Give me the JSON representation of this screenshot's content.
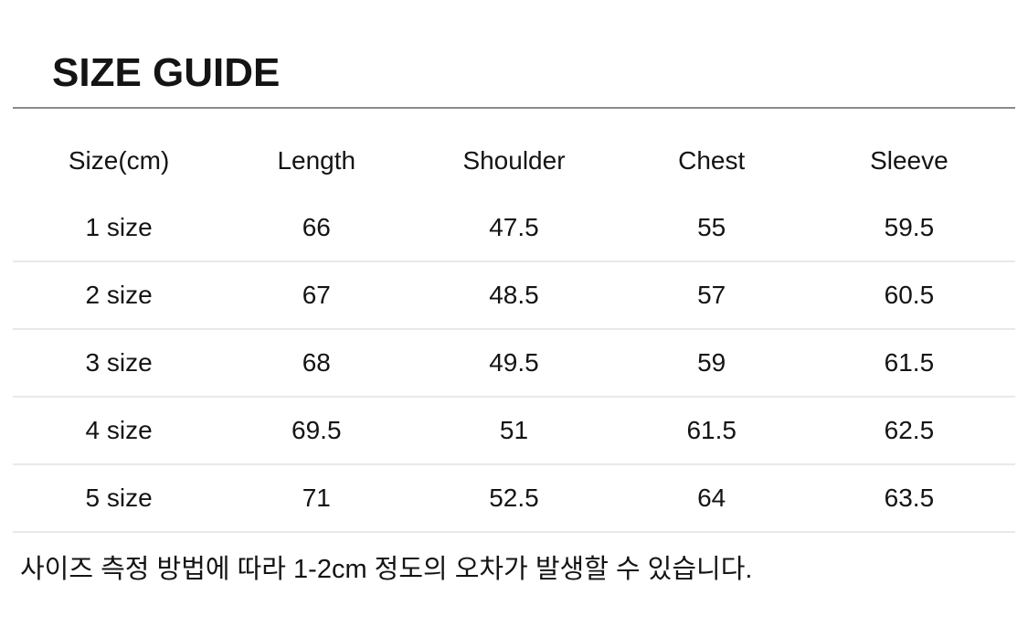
{
  "page": {
    "title": "SIZE GUIDE"
  },
  "size_table": {
    "columns": [
      "Size(cm)",
      "Length",
      "Shoulder",
      "Chest",
      "Sleeve"
    ],
    "rows": [
      [
        "1 size",
        "66",
        "47.5",
        "55",
        "59.5"
      ],
      [
        "2 size",
        "67",
        "48.5",
        "57",
        "60.5"
      ],
      [
        "3 size",
        "68",
        "49.5",
        "59",
        "61.5"
      ],
      [
        "4 size",
        "69.5",
        "51",
        "61.5",
        "62.5"
      ],
      [
        "5 size",
        "71",
        "52.5",
        "64",
        "63.5"
      ]
    ]
  },
  "note": {
    "text": "사이즈 측정 방법에 따라 1-2cm 정도의 오차가 발생할 수 있습니다."
  },
  "colors": {
    "text": "#141414",
    "title_rule": "#8a8a8a",
    "row_rule": "#e9e9e9",
    "background": "#ffffff"
  }
}
